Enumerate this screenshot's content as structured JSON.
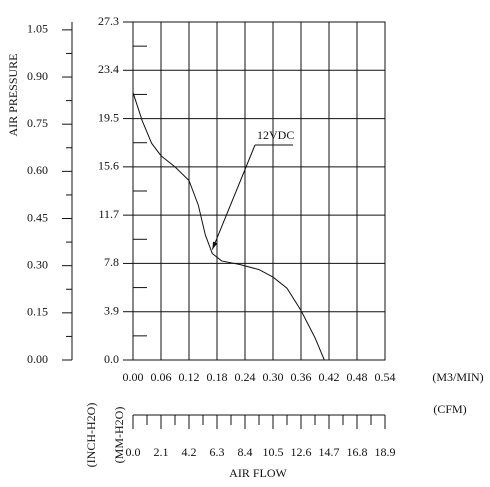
{
  "chart_data": {
    "type": "line",
    "y_label": "AIR PRESSURE",
    "x_label": "AIR FLOW",
    "x_unit": "(M3/MIN)",
    "x2_unit": "(CFM)",
    "y_unit": "(MM-H2O)",
    "y2_unit": "(INCH-H2O)",
    "x": [
      0,
      0.02,
      0.04,
      0.06,
      0.09,
      0.12,
      0.14,
      0.155,
      0.17,
      0.19,
      0.23,
      0.27,
      0.3,
      0.33,
      0.36,
      0.39,
      0.41
    ],
    "series": [
      {
        "name": "12VDC",
        "color": "#111111",
        "values": [
          21.6,
          19.3,
          17.5,
          16.5,
          15.6,
          14.5,
          12.5,
          10.1,
          8.6,
          8.0,
          7.7,
          7.3,
          6.7,
          5.8,
          4.0,
          1.8,
          0
        ]
      }
    ],
    "xlim": [
      0,
      0.54
    ],
    "xticks": [
      {
        "value": 0,
        "label": "0.00"
      },
      {
        "value": 0.06,
        "label": "0.06"
      },
      {
        "value": 0.12,
        "label": "0.12"
      },
      {
        "value": 0.18,
        "label": "0.18"
      },
      {
        "value": 0.24,
        "label": "0.24"
      },
      {
        "value": 0.3,
        "label": "0.30"
      },
      {
        "value": 0.36,
        "label": "0.36"
      },
      {
        "value": 0.42,
        "label": "0.42"
      },
      {
        "value": 0.48,
        "label": "0.48"
      },
      {
        "value": 0.54,
        "label": "0.54"
      }
    ],
    "ylim": [
      0,
      27.3
    ],
    "yticks": [
      {
        "value": 0,
        "label": "0.0"
      },
      3.9,
      7.8,
      11.7,
      15.6,
      19.5,
      23.4,
      27.3
    ],
    "y2lim": [
      0,
      1.075
    ],
    "y2ticks": [
      {
        "value": 0,
        "label": "0.00"
      },
      0.15,
      {
        "value": 0.3,
        "label": "0.30"
      },
      0.45,
      {
        "value": 0.6,
        "label": "0.60"
      },
      0.75,
      {
        "value": 0.9,
        "label": "0.90"
      },
      1.05
    ],
    "x2lim": [
      0,
      18.9
    ],
    "x2ticks": [
      {
        "value": 0,
        "label": "0.0"
      },
      2.1,
      4.2,
      6.3,
      8.4,
      10.5,
      12.6,
      14.7,
      16.8,
      18.9
    ],
    "grid": true
  }
}
